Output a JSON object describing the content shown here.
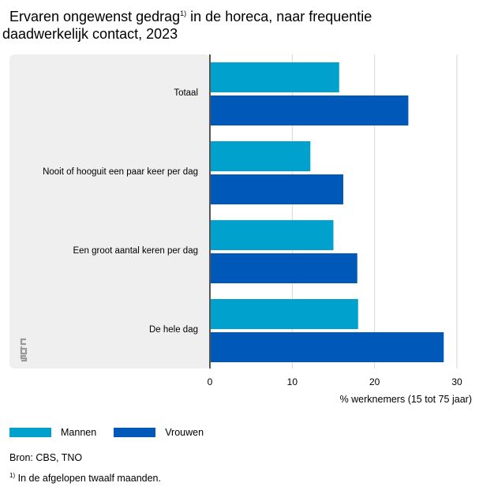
{
  "title_line1": "Ervaren ongewenst gedrag",
  "title_sup": "1)",
  "title_line1_rest": " in de horeca, naar frequentie",
  "title_line2": "daadwerkelijk contact, 2023",
  "legend": [
    {
      "label": "Mannen",
      "color": "#00a1cd"
    },
    {
      "label": "Vrouwen",
      "color": "#0058b8"
    }
  ],
  "source": "Bron: CBS, TNO",
  "footnote_mark": "1)",
  "footnote": " In de afgelopen twaalf maanden.",
  "logo_text": "cbs",
  "chart_data": {
    "type": "bar",
    "orientation": "horizontal",
    "categories": [
      "Totaal",
      "Nooit of hooguit een paar keer per dag",
      "Een groot aantal keren per dag",
      "De hele dag"
    ],
    "series": [
      {
        "name": "Mannen",
        "color": "#00a1cd",
        "values": [
          15.7,
          12.2,
          15.0,
          18.0
        ]
      },
      {
        "name": "Vrouwen",
        "color": "#0058b8",
        "values": [
          24.1,
          16.2,
          17.9,
          28.4
        ]
      }
    ],
    "xlabel": "% werknemers (15 tot 75 jaar)",
    "xlim": [
      0,
      30
    ],
    "xticks": [
      "0",
      "10",
      "20",
      "30"
    ],
    "grid": true,
    "legend_position": "bottom-left"
  }
}
